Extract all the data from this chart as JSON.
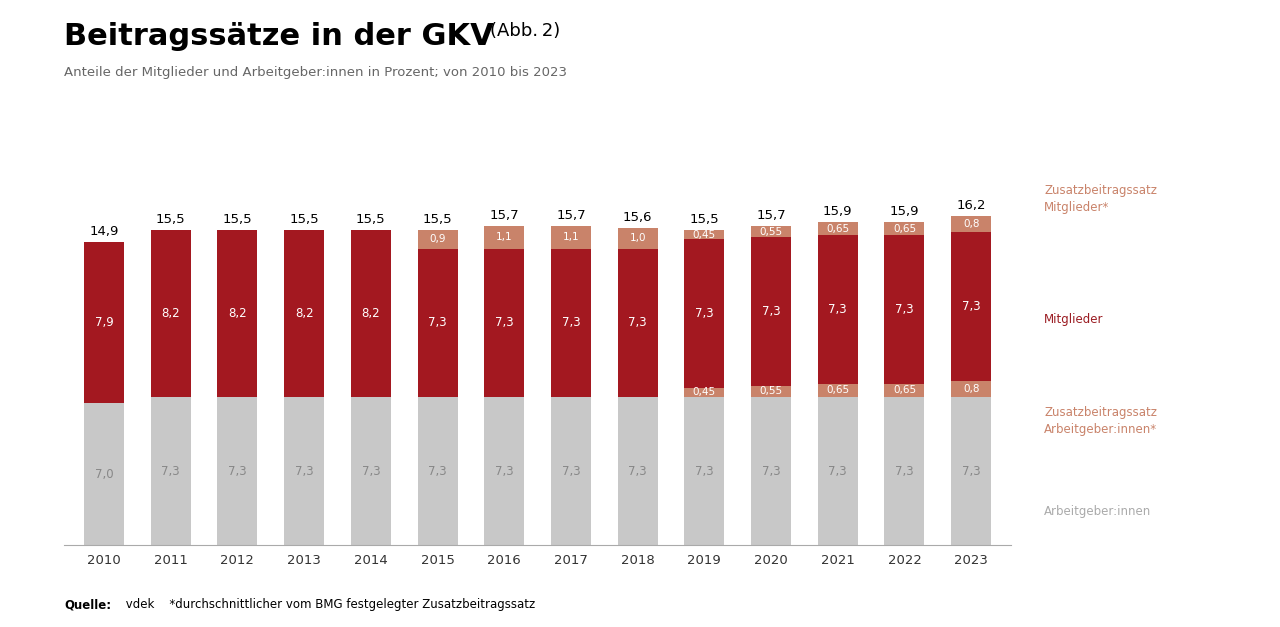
{
  "years": [
    2010,
    2011,
    2012,
    2013,
    2014,
    2015,
    2016,
    2017,
    2018,
    2019,
    2020,
    2021,
    2022,
    2023
  ],
  "arbeitgeber_base": [
    7.0,
    7.3,
    7.3,
    7.3,
    7.3,
    7.3,
    7.3,
    7.3,
    7.3,
    7.3,
    7.3,
    7.3,
    7.3,
    7.3
  ],
  "zusatz_arbeitgeber": [
    0.0,
    0.0,
    0.0,
    0.0,
    0.0,
    0.0,
    0.0,
    0.0,
    0.0,
    0.45,
    0.55,
    0.65,
    0.65,
    0.8
  ],
  "mitglieder_base": [
    7.9,
    8.2,
    8.2,
    8.2,
    8.2,
    7.3,
    7.3,
    7.3,
    7.3,
    7.3,
    7.3,
    7.3,
    7.3,
    7.3
  ],
  "zusatz_mitglieder": [
    0.0,
    0.0,
    0.0,
    0.0,
    0.0,
    0.9,
    1.1,
    1.1,
    1.0,
    0.45,
    0.55,
    0.65,
    0.65,
    0.8
  ],
  "totals": [
    14.9,
    15.5,
    15.5,
    15.5,
    15.5,
    15.5,
    15.7,
    15.7,
    15.6,
    15.5,
    15.7,
    15.9,
    15.9,
    16.2
  ],
  "color_arbeitgeber": "#c8c8c8",
  "color_salmon": "#c9836a",
  "color_mitglieder": "#a31820",
  "title_main": "Beitragssätze in der GKV",
  "title_abb": "(Abb. 2)",
  "subtitle": "Anteile der Mitglieder und Arbeitgeber:innen in Prozent; von 2010 bis 2023",
  "legend_1": "Zusatzbeitragssatz\nMitglieder*",
  "legend_2": "Mitglieder",
  "legend_3": "Zusatzbeitragssatz\nArbeitgeber:innen*",
  "legend_4": "Arbeitgeber:innen",
  "source_bold": "Quelle:",
  "source_rest": " vdek    *durchschnittlicher vom BMG festgelegter Zusatzbeitragssatz",
  "bg_color": "#ffffff",
  "color_legend_salmon": "#c9836a",
  "color_legend_red": "#9b1c22",
  "color_legend_gray": "#aaaaaa"
}
